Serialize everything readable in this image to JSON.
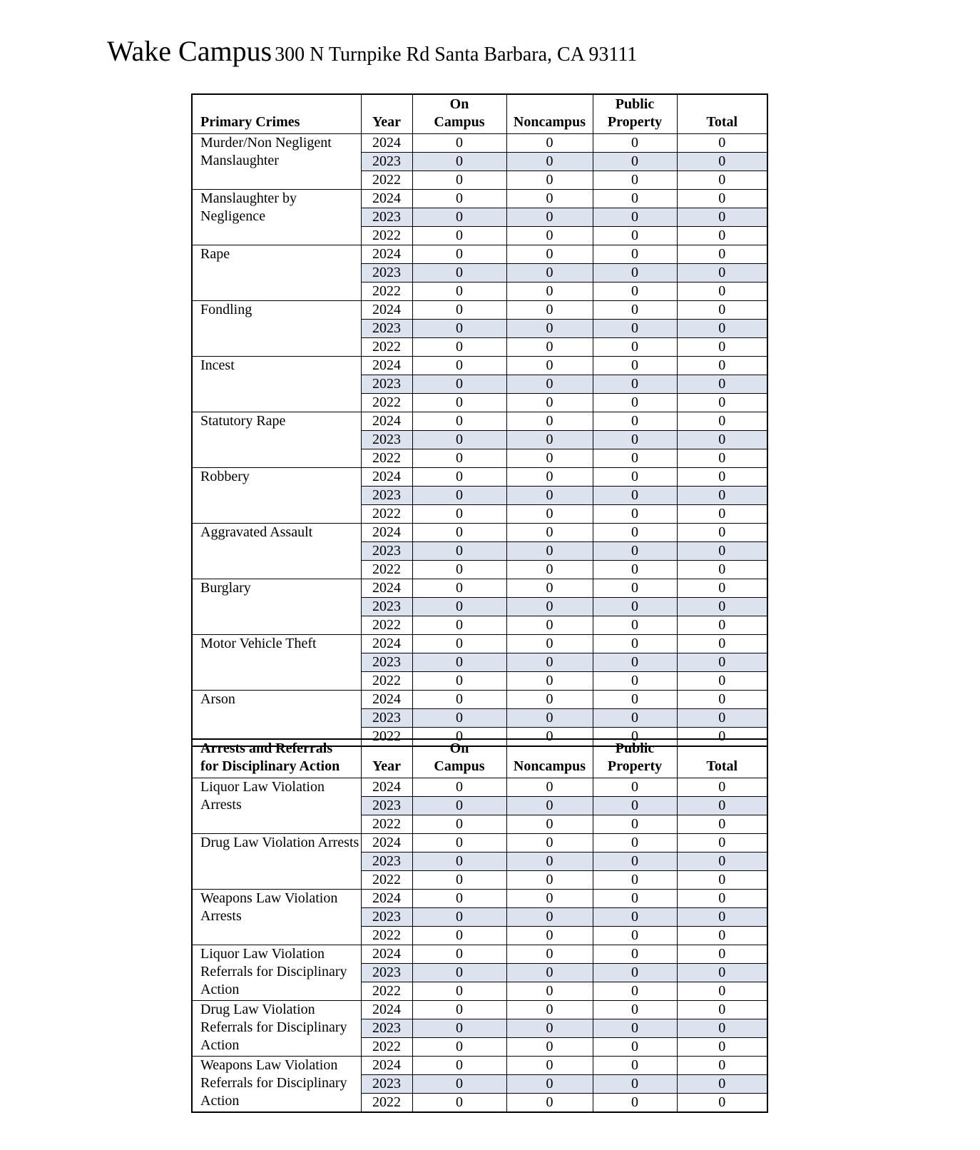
{
  "document": {
    "title": "Wake Campus",
    "address": "300 N Turnpike Rd Santa Barbara, CA 93111"
  },
  "colors": {
    "background": "#ffffff",
    "text": "#000000",
    "table_border": "#000000",
    "shaded_row": "#dce2ee"
  },
  "value_column_keys": [
    "on_campus",
    "noncampus",
    "public_property",
    "total"
  ],
  "tables": [
    {
      "id": "primary-crimes",
      "category_header_lines": [
        "Primary Crimes"
      ],
      "column_headers": {
        "year": "Year",
        "on_campus_lines": [
          "On",
          "Campus"
        ],
        "noncampus": "Noncampus",
        "public_property_lines": [
          "Public",
          "Property"
        ],
        "total": "Total"
      },
      "years": [
        "2024",
        "2023",
        "2022"
      ],
      "shaded_year": "2023",
      "rows": [
        {
          "category": "Murder/Non Negligent Manslaughter",
          "values": [
            [
              "0",
              "0",
              "0",
              "0"
            ],
            [
              "0",
              "0",
              "0",
              "0"
            ],
            [
              "0",
              "0",
              "0",
              "0"
            ]
          ]
        },
        {
          "category": "Manslaughter by Negligence",
          "values": [
            [
              "0",
              "0",
              "0",
              "0"
            ],
            [
              "0",
              "0",
              "0",
              "0"
            ],
            [
              "0",
              "0",
              "0",
              "0"
            ]
          ]
        },
        {
          "category": "Rape",
          "values": [
            [
              "0",
              "0",
              "0",
              "0"
            ],
            [
              "0",
              "0",
              "0",
              "0"
            ],
            [
              "0",
              "0",
              "0",
              "0"
            ]
          ]
        },
        {
          "category": "Fondling",
          "values": [
            [
              "0",
              "0",
              "0",
              "0"
            ],
            [
              "0",
              "0",
              "0",
              "0"
            ],
            [
              "0",
              "0",
              "0",
              "0"
            ]
          ]
        },
        {
          "category": "Incest",
          "values": [
            [
              "0",
              "0",
              "0",
              "0"
            ],
            [
              "0",
              "0",
              "0",
              "0"
            ],
            [
              "0",
              "0",
              "0",
              "0"
            ]
          ]
        },
        {
          "category": "Statutory Rape",
          "values": [
            [
              "0",
              "0",
              "0",
              "0"
            ],
            [
              "0",
              "0",
              "0",
              "0"
            ],
            [
              "0",
              "0",
              "0",
              "0"
            ]
          ]
        },
        {
          "category": "Robbery",
          "values": [
            [
              "0",
              "0",
              "0",
              "0"
            ],
            [
              "0",
              "0",
              "0",
              "0"
            ],
            [
              "0",
              "0",
              "0",
              "0"
            ]
          ]
        },
        {
          "category": "Aggravated Assault",
          "values": [
            [
              "0",
              "0",
              "0",
              "0"
            ],
            [
              "0",
              "0",
              "0",
              "0"
            ],
            [
              "0",
              "0",
              "0",
              "0"
            ]
          ]
        },
        {
          "category": "Burglary",
          "values": [
            [
              "0",
              "0",
              "0",
              "0"
            ],
            [
              "0",
              "0",
              "0",
              "0"
            ],
            [
              "0",
              "0",
              "0",
              "0"
            ]
          ]
        },
        {
          "category": "Motor Vehicle Theft",
          "values": [
            [
              "0",
              "0",
              "0",
              "0"
            ],
            [
              "0",
              "0",
              "0",
              "0"
            ],
            [
              "0",
              "0",
              "0",
              "0"
            ]
          ]
        },
        {
          "category": "Arson",
          "values": [
            [
              "0",
              "0",
              "0",
              "0"
            ],
            [
              "0",
              "0",
              "0",
              "0"
            ],
            [
              "0",
              "0",
              "0",
              "0"
            ]
          ]
        }
      ]
    },
    {
      "id": "arrests-referrals",
      "category_header_lines": [
        "Arrests and Referrals",
        "for Disciplinary Action"
      ],
      "column_headers": {
        "year": "Year",
        "on_campus_lines": [
          "On",
          "Campus"
        ],
        "noncampus": "Noncampus",
        "public_property_lines": [
          "Public",
          "Property"
        ],
        "total": "Total"
      },
      "years": [
        "2024",
        "2023",
        "2022"
      ],
      "shaded_year": "2023",
      "rows": [
        {
          "category": "Liquor Law Violation Arrests",
          "values": [
            [
              "0",
              "0",
              "0",
              "0"
            ],
            [
              "0",
              "0",
              "0",
              "0"
            ],
            [
              "0",
              "0",
              "0",
              "0"
            ]
          ]
        },
        {
          "category": "Drug Law Violation Arrests",
          "values": [
            [
              "0",
              "0",
              "0",
              "0"
            ],
            [
              "0",
              "0",
              "0",
              "0"
            ],
            [
              "0",
              "0",
              "0",
              "0"
            ]
          ]
        },
        {
          "category": "Weapons Law Violation Arrests",
          "values": [
            [
              "0",
              "0",
              "0",
              "0"
            ],
            [
              "0",
              "0",
              "0",
              "0"
            ],
            [
              "0",
              "0",
              "0",
              "0"
            ]
          ]
        },
        {
          "category": "Liquor Law Violation Referrals for Disciplinary Action",
          "values": [
            [
              "0",
              "0",
              "0",
              "0"
            ],
            [
              "0",
              "0",
              "0",
              "0"
            ],
            [
              "0",
              "0",
              "0",
              "0"
            ]
          ]
        },
        {
          "category": "Drug Law Violation Referrals for Disciplinary Action",
          "values": [
            [
              "0",
              "0",
              "0",
              "0"
            ],
            [
              "0",
              "0",
              "0",
              "0"
            ],
            [
              "0",
              "0",
              "0",
              "0"
            ]
          ]
        },
        {
          "category": "Weapons Law Violation Referrals for Disciplinary Action",
          "values": [
            [
              "0",
              "0",
              "0",
              "0"
            ],
            [
              "0",
              "0",
              "0",
              "0"
            ],
            [
              "0",
              "0",
              "0",
              "0"
            ]
          ]
        }
      ]
    }
  ]
}
